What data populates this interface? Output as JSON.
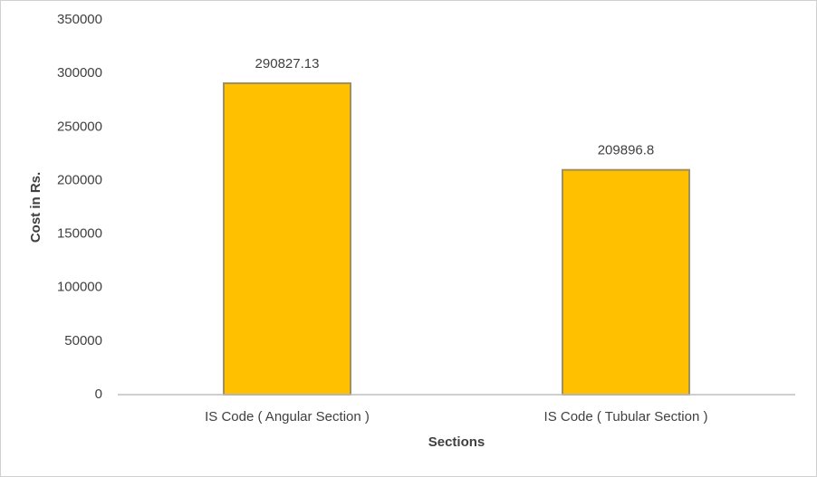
{
  "chart_data": {
    "type": "bar",
    "categories": [
      "IS Code ( Angular Section )",
      "IS Code ( Tubular Section )"
    ],
    "values": [
      290827.13,
      209896.8
    ],
    "color": "#ffc000",
    "xlabel": "Sections",
    "ylabel": "Cost in Rs.",
    "ylim": [
      0,
      350000
    ],
    "yticks": [
      0,
      50000,
      100000,
      150000,
      200000,
      250000,
      300000,
      350000
    ],
    "grid": false
  }
}
